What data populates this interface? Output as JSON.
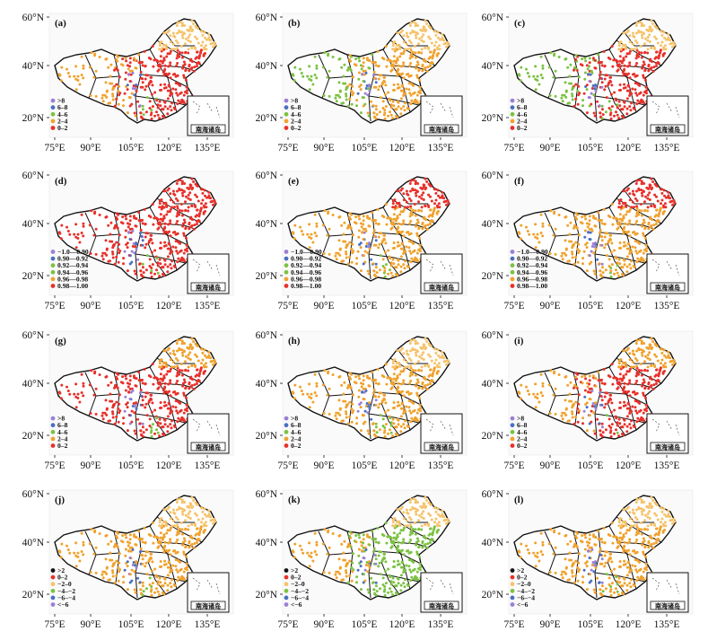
{
  "x_ticks": [
    "75°E",
    "90°E",
    "105°E",
    "120°E",
    "135°E"
  ],
  "y_ticks": [
    "60°N",
    "40°N",
    "20°N"
  ],
  "inset_label": "南海诸岛",
  "colors": {
    "red": "#e8302a",
    "orange": "#f0a22e",
    "light_orange": "#f6c36a",
    "green": "#7cc242",
    "blue": "#4a6fc2",
    "purple": "#9b7fd4",
    "black": "#111111",
    "boundary": "#111111"
  },
  "panels": [
    {
      "label": "(a)",
      "dominant": "red",
      "north": "light_orange",
      "west": "orange",
      "legend": [
        {
          "label": ">8",
          "color": "purple"
        },
        {
          "label": "6–8",
          "color": "blue"
        },
        {
          "label": "4–6",
          "color": "green"
        },
        {
          "label": "2–4",
          "color": "orange"
        },
        {
          "label": "0–2",
          "color": "red"
        }
      ]
    },
    {
      "label": "(b)",
      "dominant": "orange",
      "north": "light_orange",
      "west": "green",
      "legend": [
        {
          "label": ">8",
          "color": "purple"
        },
        {
          "label": "6–8",
          "color": "blue"
        },
        {
          "label": "4–6",
          "color": "green"
        },
        {
          "label": "2–4",
          "color": "orange"
        },
        {
          "label": "0–2",
          "color": "red"
        }
      ]
    },
    {
      "label": "(c)",
      "dominant": "red",
      "north": "light_orange",
      "west": "green",
      "legend": [
        {
          "label": ">8",
          "color": "purple"
        },
        {
          "label": "6–8",
          "color": "blue"
        },
        {
          "label": "4–6",
          "color": "green"
        },
        {
          "label": "2–4",
          "color": "orange"
        },
        {
          "label": "0–2",
          "color": "red"
        }
      ]
    },
    {
      "label": "(d)",
      "dominant": "red",
      "north": "red",
      "west": "red",
      "legend": [
        {
          "label": "−1.0—0.90",
          "color": "purple"
        },
        {
          "label": "0.90—0.92",
          "color": "blue"
        },
        {
          "label": "0.92—0.94",
          "color": "green"
        },
        {
          "label": "0.94—0.96",
          "color": "green"
        },
        {
          "label": "0.96—0.98",
          "color": "orange"
        },
        {
          "label": "0.98—1.00",
          "color": "red"
        }
      ]
    },
    {
      "label": "(e)",
      "dominant": "orange",
      "north": "red",
      "west": "orange",
      "legend": [
        {
          "label": "−1.0—0.90",
          "color": "purple"
        },
        {
          "label": "0.90—0.92",
          "color": "blue"
        },
        {
          "label": "0.92—0.94",
          "color": "green"
        },
        {
          "label": "0.94—0.96",
          "color": "green"
        },
        {
          "label": "0.96—0.98",
          "color": "orange"
        },
        {
          "label": "0.98—1.00",
          "color": "red"
        }
      ]
    },
    {
      "label": "(f)",
      "dominant": "orange",
      "north": "red",
      "west": "orange",
      "legend": [
        {
          "label": "−1.0—0.90",
          "color": "purple"
        },
        {
          "label": "0.90—0.92",
          "color": "blue"
        },
        {
          "label": "0.92—0.94",
          "color": "green"
        },
        {
          "label": "0.94—0.96",
          "color": "green"
        },
        {
          "label": "0.96—0.98",
          "color": "orange"
        },
        {
          "label": "0.98—1.00",
          "color": "red"
        }
      ]
    },
    {
      "label": "(g)",
      "dominant": "red",
      "north": "orange",
      "west": "red",
      "legend": [
        {
          "label": ">8",
          "color": "purple"
        },
        {
          "label": "6–8",
          "color": "blue"
        },
        {
          "label": "4–6",
          "color": "green"
        },
        {
          "label": "2–4",
          "color": "orange"
        },
        {
          "label": "0–2",
          "color": "red"
        }
      ]
    },
    {
      "label": "(h)",
      "dominant": "orange",
      "north": "light_orange",
      "west": "orange",
      "legend": [
        {
          "label": ">8",
          "color": "purple"
        },
        {
          "label": "6–8",
          "color": "blue"
        },
        {
          "label": "4–6",
          "color": "green"
        },
        {
          "label": "2–4",
          "color": "orange"
        },
        {
          "label": "0–2",
          "color": "red"
        }
      ]
    },
    {
      "label": "(i)",
      "dominant": "red",
      "north": "orange",
      "west": "orange",
      "legend": [
        {
          "label": ">8",
          "color": "purple"
        },
        {
          "label": "6–8",
          "color": "blue"
        },
        {
          "label": "4–6",
          "color": "green"
        },
        {
          "label": "2–4",
          "color": "orange"
        },
        {
          "label": "0–2",
          "color": "red"
        }
      ]
    },
    {
      "label": "(j)",
      "dominant": "orange",
      "north": "light_orange",
      "west": "orange",
      "legend": [
        {
          "label": ">2",
          "color": "black"
        },
        {
          "label": "0–2",
          "color": "red"
        },
        {
          "label": "−2–0",
          "color": "light_orange"
        },
        {
          "label": "−4–−2",
          "color": "green"
        },
        {
          "label": "−6–−4",
          "color": "blue"
        },
        {
          "label": "<−6",
          "color": "purple"
        }
      ]
    },
    {
      "label": "(k)",
      "dominant": "green",
      "north": "light_orange",
      "west": "orange",
      "legend": [
        {
          "label": ">2",
          "color": "black"
        },
        {
          "label": "0–2",
          "color": "red"
        },
        {
          "label": "−2–0",
          "color": "light_orange"
        },
        {
          "label": "−4–−2",
          "color": "green"
        },
        {
          "label": "−6–−4",
          "color": "blue"
        },
        {
          "label": "<−6",
          "color": "purple"
        }
      ]
    },
    {
      "label": "(l)",
      "dominant": "orange",
      "north": "light_orange",
      "west": "orange",
      "legend": [
        {
          "label": ">2",
          "color": "black"
        },
        {
          "label": "0–2",
          "color": "red"
        },
        {
          "label": "−2–0",
          "color": "light_orange"
        },
        {
          "label": "−4–−2",
          "color": "green"
        },
        {
          "label": "−6–−4",
          "color": "blue"
        },
        {
          "label": "<−6",
          "color": "purple"
        }
      ]
    }
  ]
}
